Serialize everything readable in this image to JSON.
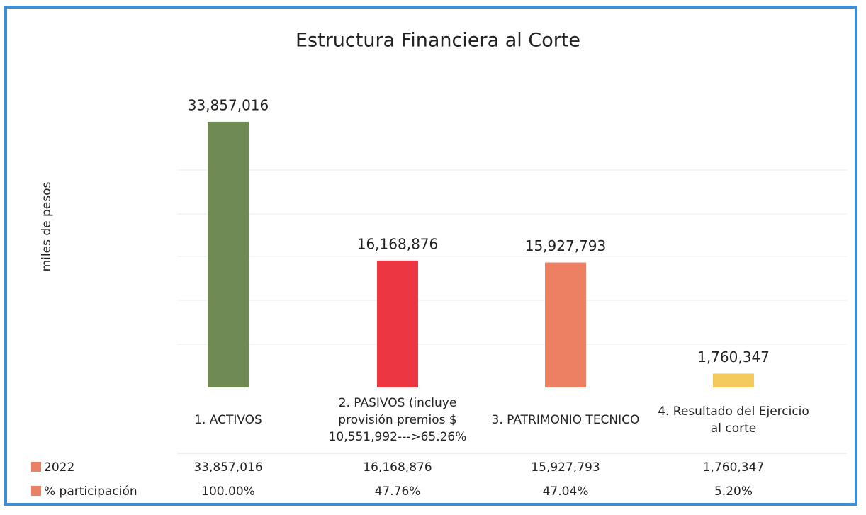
{
  "chart_data": {
    "type": "bar",
    "title": "Estructura Financiera al Corte",
    "y_label": "miles de pesos",
    "categories": [
      "1. ACTIVOS",
      "2. PASIVOS (incluye provisión premios $ 10,551,992--->65.26%",
      "3. PATRIMONIO TECNICO",
      "4. Resultado del Ejercicio al corte"
    ],
    "ylim": [
      0,
      38000000
    ],
    "series": [
      {
        "name": "2022",
        "color": "#ec8064",
        "colors": [
          "#6f8b53",
          "#ec3641",
          "#ed8063",
          "#f4c95e"
        ],
        "values": [
          33857016,
          16168876,
          15927793,
          1760347
        ],
        "value_labels": [
          "33,857,016",
          "16,168,876",
          "15,927,793",
          "1,760,347"
        ]
      },
      {
        "name": "% participación",
        "color": "#ec8064",
        "values": [
          100,
          47.76,
          47.04,
          5.2
        ],
        "value_labels": [
          "100.00%",
          "47.76%",
          "47.04%",
          "5.20%"
        ]
      }
    ]
  }
}
